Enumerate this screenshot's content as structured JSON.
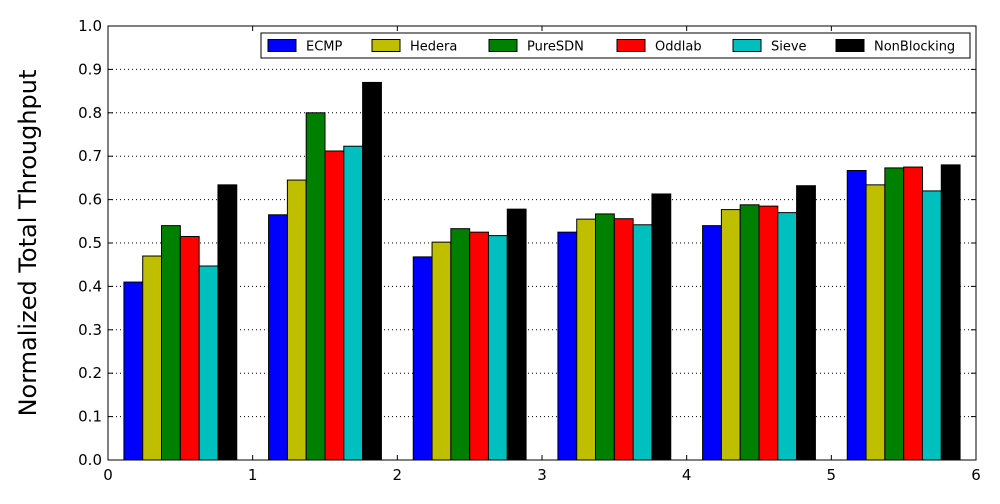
{
  "chart_data": {
    "type": "bar",
    "title": "",
    "xlabel": "",
    "ylabel": "Normalized Total Throughput",
    "xlim": [
      0,
      6
    ],
    "ylim": [
      0.0,
      1.0
    ],
    "x_ticks": [
      "0",
      "1",
      "2",
      "3",
      "4",
      "5",
      "6"
    ],
    "y_ticks": [
      "0.0",
      "0.1",
      "0.2",
      "0.3",
      "0.4",
      "0.5",
      "0.6",
      "0.7",
      "0.8",
      "0.9",
      "1.0"
    ],
    "grid": "horizontal dotted",
    "legend_position": "top-right",
    "group_centers": [
      0.5,
      1.5,
      2.5,
      3.5,
      4.5,
      5.5
    ],
    "bar_width": 0.13,
    "series": [
      {
        "name": "ECMP",
        "color": "#0000ff",
        "values": [
          0.41,
          0.565,
          0.468,
          0.525,
          0.54,
          0.667
        ]
      },
      {
        "name": "Hedera",
        "color": "#bfbf00",
        "values": [
          0.47,
          0.645,
          0.502,
          0.555,
          0.577,
          0.634
        ]
      },
      {
        "name": "PureSDN",
        "color": "#008000",
        "values": [
          0.54,
          0.8,
          0.533,
          0.567,
          0.588,
          0.673
        ]
      },
      {
        "name": "Oddlab",
        "color": "#ff0000",
        "values": [
          0.515,
          0.712,
          0.525,
          0.556,
          0.585,
          0.675
        ]
      },
      {
        "name": "Sieve",
        "color": "#00bfbf",
        "values": [
          0.447,
          0.723,
          0.517,
          0.542,
          0.57,
          0.62
        ]
      },
      {
        "name": "NonBlocking",
        "color": "#000000",
        "values": [
          0.634,
          0.87,
          0.578,
          0.613,
          0.632,
          0.68
        ]
      }
    ]
  }
}
